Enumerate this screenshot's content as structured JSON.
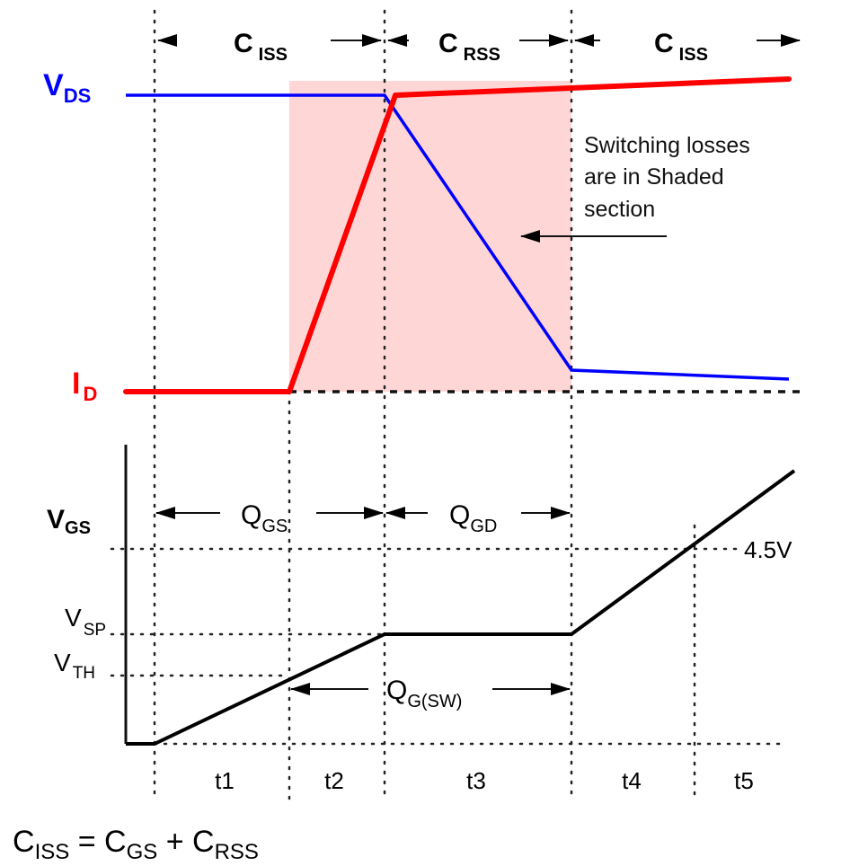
{
  "colors": {
    "vds": "#0000ff",
    "id": "#ff0000",
    "vgs": "#000000",
    "shade": "#ffd6d6"
  },
  "top": {
    "vds_label": {
      "main": "V",
      "sub": "DS"
    },
    "id_label": {
      "main": "I",
      "sub": "D"
    },
    "regions": [
      {
        "main": "C",
        "sub": "ISS"
      },
      {
        "main": "C",
        "sub": "RSS"
      },
      {
        "main": "C",
        "sub": "ISS"
      }
    ],
    "note": [
      "Switching losses",
      "are in Shaded",
      "section"
    ]
  },
  "bottom": {
    "vgs_label": {
      "main": "V",
      "sub": "GS"
    },
    "qgs": {
      "main": "Q",
      "sub": "GS"
    },
    "qgd": {
      "main": "Q",
      "sub": "GD"
    },
    "qgsw": {
      "main": "Q",
      "sub": "G(SW)"
    },
    "vsp": {
      "main": "V",
      "sub": "SP"
    },
    "vth": {
      "main": "V",
      "sub": "TH"
    },
    "level": "4.5V",
    "intervals": [
      "t1",
      "t2",
      "t3",
      "t4",
      "t5"
    ]
  },
  "equation": {
    "a": "C",
    "a_sub": "ISS",
    "eq": " = ",
    "b": "C",
    "b_sub": "GS",
    "plus": " + ",
    "c": "C",
    "c_sub": "RSS"
  }
}
